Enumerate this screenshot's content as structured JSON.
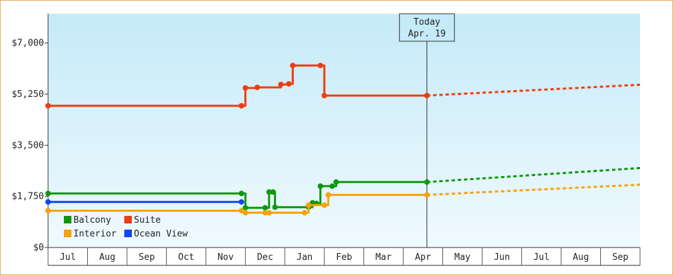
{
  "chart_data": {
    "type": "line",
    "title": "",
    "xlabel": "",
    "ylabel": "",
    "currency_prefix": "$",
    "ylim": [
      0,
      8000
    ],
    "yticks": [
      0,
      1750,
      3500,
      5250,
      7000
    ],
    "ytick_labels": [
      "$0",
      "$1,750",
      "$3,500",
      "$5,250",
      "$7,000"
    ],
    "x_months": [
      "Jul",
      "Aug",
      "Sep",
      "Oct",
      "Nov",
      "Dec",
      "Jan",
      "Feb",
      "Mar",
      "Apr",
      "May",
      "Jun",
      "Jul",
      "Aug",
      "Sep"
    ],
    "today": {
      "line1": "Today",
      "line2": "Apr. 19",
      "x": 9.6
    },
    "grid": false,
    "legend_position": "bottom-left",
    "series": [
      {
        "name": "Suite",
        "color": "#f03c10",
        "points": [
          [
            0,
            4850
          ],
          [
            4.9,
            4850
          ],
          [
            5.0,
            5460
          ],
          [
            5.3,
            5480
          ],
          [
            5.9,
            5580
          ],
          [
            6.1,
            5600
          ],
          [
            6.2,
            6230
          ],
          [
            6.9,
            6230
          ],
          [
            7.0,
            5200
          ],
          [
            9.6,
            5200
          ]
        ],
        "forecast": [
          [
            9.6,
            5200
          ],
          [
            15,
            5570
          ]
        ]
      },
      {
        "name": "Balcony",
        "color": "#0c9a0c",
        "points": [
          [
            0,
            1850
          ],
          [
            4.9,
            1850
          ],
          [
            5.0,
            1360
          ],
          [
            5.5,
            1360
          ],
          [
            5.6,
            1900
          ],
          [
            5.7,
            1900
          ],
          [
            5.75,
            1380
          ],
          [
            6.6,
            1380
          ],
          [
            6.7,
            1530
          ],
          [
            6.8,
            1510
          ],
          [
            6.9,
            2100
          ],
          [
            7.2,
            2100
          ],
          [
            7.3,
            2240
          ],
          [
            9.6,
            2240
          ]
        ],
        "forecast": [
          [
            9.6,
            2240
          ],
          [
            15,
            2720
          ]
        ]
      },
      {
        "name": "Interior",
        "color": "#f7a10d",
        "points": [
          [
            0,
            1260
          ],
          [
            4.9,
            1260
          ],
          [
            5.0,
            1190
          ],
          [
            5.5,
            1190
          ],
          [
            5.6,
            1190
          ],
          [
            6.5,
            1190
          ],
          [
            6.6,
            1450
          ],
          [
            7.0,
            1450
          ],
          [
            7.1,
            1800
          ],
          [
            9.6,
            1800
          ]
        ],
        "forecast": [
          [
            9.6,
            1800
          ],
          [
            15,
            2150
          ]
        ]
      },
      {
        "name": "Ocean View",
        "color": "#1045f0",
        "points": [
          [
            0,
            1560
          ],
          [
            4.9,
            1560
          ]
        ],
        "forecast": []
      }
    ]
  }
}
